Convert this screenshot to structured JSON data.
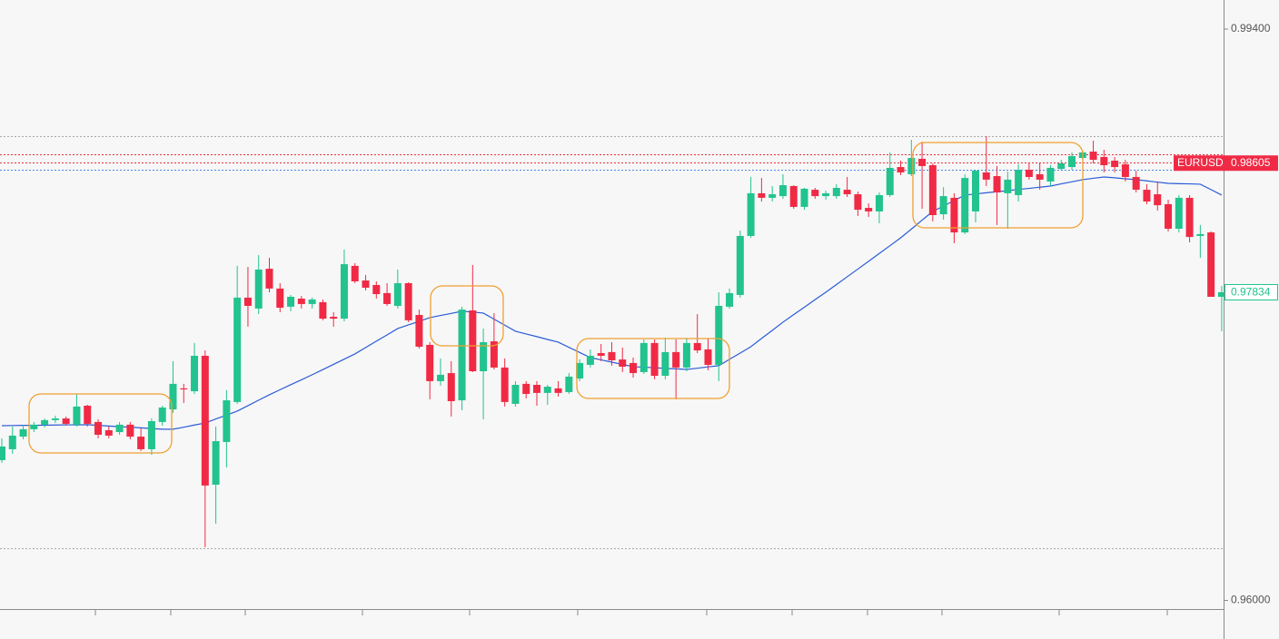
{
  "chart_data": {
    "type": "candlestick",
    "symbol": "EURUSD",
    "bid": 0.98605,
    "last": 0.97834,
    "up_color": "#22c38e",
    "down_color": "#f02a45",
    "ma_color": "#2a5bd7",
    "ylim": [
      0.95949,
      0.99573
    ],
    "yticks": [
      {
        "value": 0.994,
        "label": "0.99400"
      },
      {
        "value": 0.96,
        "label": "0.96000"
      }
    ],
    "levels": [
      {
        "value": 0.98762,
        "color": "#a8a8a8"
      },
      {
        "value": 0.98654,
        "color": "#e8303f"
      },
      {
        "value": 0.98605,
        "color": "#e8303f"
      },
      {
        "value": 0.98562,
        "color": "#4a86e8"
      },
      {
        "value": 0.96313,
        "color": "#a8a8a8"
      }
    ],
    "open": [
      0.96835,
      0.969,
      0.96975,
      0.97019,
      0.97046,
      0.97073,
      0.97083,
      0.97046,
      0.97159,
      0.97062,
      0.97013,
      0.97002,
      0.97046,
      0.96975,
      0.969,
      0.97062,
      0.97137,
      0.97262,
      0.97245,
      0.97456,
      0.96689,
      0.96943,
      0.97181,
      0.97802,
      0.97737,
      0.97974,
      0.97856,
      0.97748,
      0.97796,
      0.97764,
      0.97775,
      0.97688,
      0.97677,
      0.97991,
      0.97904,
      0.97877,
      0.97829,
      0.97753,
      0.97888,
      0.97699,
      0.97521,
      0.97305,
      0.97353,
      0.97191,
      0.97726,
      0.97364,
      0.97542,
      0.97386,
      0.9717,
      0.97289,
      0.97283,
      0.97235,
      0.97262,
      0.9724,
      0.97321,
      0.97402,
      0.97472,
      0.97478,
      0.97434,
      0.97413,
      0.97359,
      0.97532,
      0.97337,
      0.97478,
      0.97386,
      0.97532,
      0.97494,
      0.97402,
      0.97748,
      0.97818,
      0.98169,
      0.98423,
      0.98396,
      0.98406,
      0.98466,
      0.98342,
      0.98444,
      0.98406,
      0.98406,
      0.98444,
      0.98417,
      0.98336,
      0.98315,
      0.98412,
      0.98579,
      0.98536,
      0.98628,
      0.9859,
      0.98298,
      0.98396,
      0.9819,
      0.98315,
      0.98547,
      0.98525,
      0.98423,
      0.98412,
      0.98563,
      0.98536,
      0.98493,
      0.98568,
      0.98579,
      0.98633,
      0.98671,
      0.98639,
      0.98617,
      0.98595,
      0.9852,
      0.98444,
      0.98417,
      0.98358,
      0.98212,
      0.98396,
      0.98169,
      0.9819,
      0.97807
    ],
    "high": [
      0.96965,
      0.97035,
      0.97046,
      0.97062,
      0.97083,
      0.971,
      0.97094,
      0.97229,
      0.97164,
      0.97078,
      0.97035,
      0.97062,
      0.97062,
      0.97024,
      0.97083,
      0.97159,
      0.97424,
      0.97289,
      0.97532,
      0.97488,
      0.97035,
      0.97251,
      0.97991,
      0.97985,
      0.98055,
      0.98039,
      0.97888,
      0.97818,
      0.97812,
      0.97802,
      0.97791,
      0.97715,
      0.98088,
      0.98007,
      0.97937,
      0.97899,
      0.97888,
      0.97969,
      0.97893,
      0.97731,
      0.97537,
      0.9744,
      0.97424,
      0.97748,
      0.97996,
      0.97618,
      0.9771,
      0.9744,
      0.97305,
      0.97305,
      0.97305,
      0.97283,
      0.97305,
      0.97353,
      0.97434,
      0.97494,
      0.97526,
      0.97537,
      0.97505,
      0.97445,
      0.97553,
      0.97553,
      0.97564,
      0.97553,
      0.97564,
      0.97704,
      0.97559,
      0.97834,
      0.97856,
      0.98201,
      0.9852,
      0.98514,
      0.98466,
      0.98536,
      0.98471,
      0.98455,
      0.98455,
      0.98439,
      0.98477,
      0.9852,
      0.98433,
      0.98363,
      0.98428,
      0.98666,
      0.98617,
      0.98741,
      0.9873,
      0.98601,
      0.9846,
      0.98423,
      0.98536,
      0.98558,
      0.98763,
      0.98585,
      0.98552,
      0.98595,
      0.98601,
      0.98601,
      0.9859,
      0.98622,
      0.98666,
      0.98676,
      0.98736,
      0.98682,
      0.98639,
      0.98622,
      0.98558,
      0.98477,
      0.98493,
      0.98385,
      0.98412,
      0.98412,
      0.98234,
      0.98196,
      0.97872
    ],
    "low": [
      0.96819,
      0.96873,
      0.96959,
      0.97002,
      0.97029,
      0.97056,
      0.9704,
      0.97035,
      0.97035,
      0.96965,
      0.96965,
      0.96986,
      0.96959,
      0.96889,
      0.96867,
      0.9704,
      0.97116,
      0.97175,
      0.97229,
      0.96317,
      0.96457,
      0.96792,
      0.9717,
      0.97629,
      0.97704,
      0.97834,
      0.97715,
      0.97721,
      0.97737,
      0.97737,
      0.97667,
      0.97629,
      0.97661,
      0.97888,
      0.97845,
      0.97796,
      0.97753,
      0.97737,
      0.97656,
      0.97499,
      0.97197,
      0.97278,
      0.97094,
      0.97132,
      0.97359,
      0.97078,
      0.97375,
      0.97154,
      0.97154,
      0.97202,
      0.97159,
      0.97164,
      0.97213,
      0.97229,
      0.97305,
      0.97386,
      0.97424,
      0.97397,
      0.97359,
      0.97326,
      0.97348,
      0.97316,
      0.97316,
      0.97197,
      0.97364,
      0.97472,
      0.9737,
      0.97305,
      0.97737,
      0.97802,
      0.98158,
      0.98374,
      0.98374,
      0.9839,
      0.98331,
      0.98325,
      0.9839,
      0.98385,
      0.9839,
      0.98401,
      0.98288,
      0.98282,
      0.98244,
      0.98401,
      0.98531,
      0.98525,
      0.98331,
      0.98255,
      0.98266,
      0.98126,
      0.9818,
      0.9825,
      0.98466,
      0.98234,
      0.98212,
      0.98374,
      0.98504,
      0.98444,
      0.98466,
      0.98558,
      0.98563,
      0.98622,
      0.98601,
      0.98547,
      0.98547,
      0.98493,
      0.98428,
      0.98358,
      0.9832,
      0.98196,
      0.9819,
      0.98131,
      0.98039,
      0.97807,
      0.97602
    ],
    "close": [
      0.96916,
      0.96981,
      0.97019,
      0.97046,
      0.97073,
      0.97083,
      0.97051,
      0.97154,
      0.97051,
      0.96986,
      0.96981,
      0.97046,
      0.96975,
      0.969,
      0.97067,
      0.97148,
      0.97289,
      0.97256,
      0.97456,
      0.96684,
      0.96948,
      0.97191,
      0.97802,
      0.97753,
      0.97969,
      0.97856,
      0.97742,
      0.97807,
      0.97764,
      0.97791,
      0.97677,
      0.97677,
      0.98001,
      0.97899,
      0.97861,
      0.97823,
      0.97764,
      0.97888,
      0.97667,
      0.9751,
      0.97305,
      0.97343,
      0.97186,
      0.97731,
      0.97364,
      0.97537,
      0.97386,
      0.97181,
      0.97283,
      0.97229,
      0.97235,
      0.97272,
      0.97235,
      0.97332,
      0.97413,
      0.97456,
      0.97456,
      0.97429,
      0.97391,
      0.97353,
      0.97532,
      0.97337,
      0.97478,
      0.97386,
      0.97532,
      0.97488,
      0.97402,
      0.97753,
      0.97829,
      0.98169,
      0.98423,
      0.98396,
      0.98417,
      0.98471,
      0.98342,
      0.9845,
      0.98406,
      0.98423,
      0.98455,
      0.98417,
      0.98325,
      0.98315,
      0.98412,
      0.98574,
      0.98547,
      0.98633,
      0.98585,
      0.98293,
      0.98406,
      0.9819,
      0.98514,
      0.98558,
      0.98504,
      0.98428,
      0.98504,
      0.98563,
      0.9852,
      0.98504,
      0.98574,
      0.98601,
      0.98644,
      0.98666,
      0.98622,
      0.9859,
      0.98579,
      0.9852,
      0.98444,
      0.98374,
      0.98352,
      0.98212,
      0.98396,
      0.98163,
      0.9818,
      0.97807,
      0.97834
    ],
    "ma": [
      0.9704,
      0.97041,
      0.97042,
      0.97042,
      0.97043,
      0.97044,
      0.97045,
      0.97045,
      0.97046,
      0.97042,
      0.97038,
      0.97034,
      0.97031,
      0.97027,
      0.97023,
      0.97019,
      0.97019,
      0.97031,
      0.97044,
      0.97056,
      0.9708,
      0.97103,
      0.97127,
      0.97159,
      0.97192,
      0.97224,
      0.97254,
      0.97284,
      0.97313,
      0.97343,
      0.97374,
      0.97405,
      0.97436,
      0.97467,
      0.97505,
      0.97543,
      0.9758,
      0.97618,
      0.9764,
      0.97661,
      0.97683,
      0.97696,
      0.97708,
      0.97721,
      0.97716,
      0.9771,
      0.97674,
      0.97638,
      0.97602,
      0.97586,
      0.9757,
      0.97553,
      0.97537,
      0.97506,
      0.97476,
      0.97445,
      0.97432,
      0.97418,
      0.97405,
      0.97391,
      0.97388,
      0.97385,
      0.97381,
      0.97378,
      0.97375,
      0.97382,
      0.9739,
      0.97397,
      0.97435,
      0.97472,
      0.9751,
      0.97559,
      0.97607,
      0.97656,
      0.97701,
      0.97745,
      0.9779,
      0.97834,
      0.9788,
      0.97926,
      0.97972,
      0.98018,
      0.98065,
      0.98111,
      0.98158,
      0.9821,
      0.98263,
      0.98315,
      0.98347,
      0.9838,
      0.98412,
      0.98419,
      0.98426,
      0.98432,
      0.98439,
      0.98446,
      0.98452,
      0.98459,
      0.98466,
      0.98479,
      0.98491,
      0.98504,
      0.98512,
      0.9852,
      0.98515,
      0.98509,
      0.98504,
      0.98497,
      0.98489,
      0.98482,
      0.9848,
      0.98479,
      0.98477,
      0.98445,
      0.98412
    ]
  }
}
